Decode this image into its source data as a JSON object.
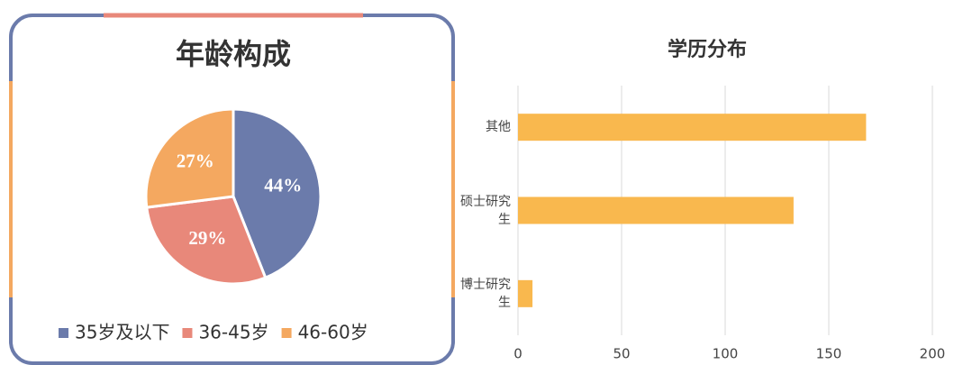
{
  "chart_data": [
    {
      "type": "pie",
      "title": "年龄构成",
      "categories": [
        "35岁及以下",
        "36-45岁",
        "46-60岁"
      ],
      "values": [
        44,
        29,
        27
      ],
      "value_labels": [
        "44%",
        "29%",
        "27%"
      ],
      "colors": [
        "#6b7bab",
        "#e8887a",
        "#f4a860"
      ],
      "legend": "bottom"
    },
    {
      "type": "hbar",
      "title": "学历分布",
      "categories": [
        "其他",
        "硕士研究生",
        "博士研究生"
      ],
      "values": [
        168,
        133,
        7
      ],
      "color": "#f9b84e",
      "xlim": [
        0,
        200
      ],
      "xticks": [
        0,
        50,
        100,
        150,
        200
      ],
      "grid": true
    }
  ]
}
